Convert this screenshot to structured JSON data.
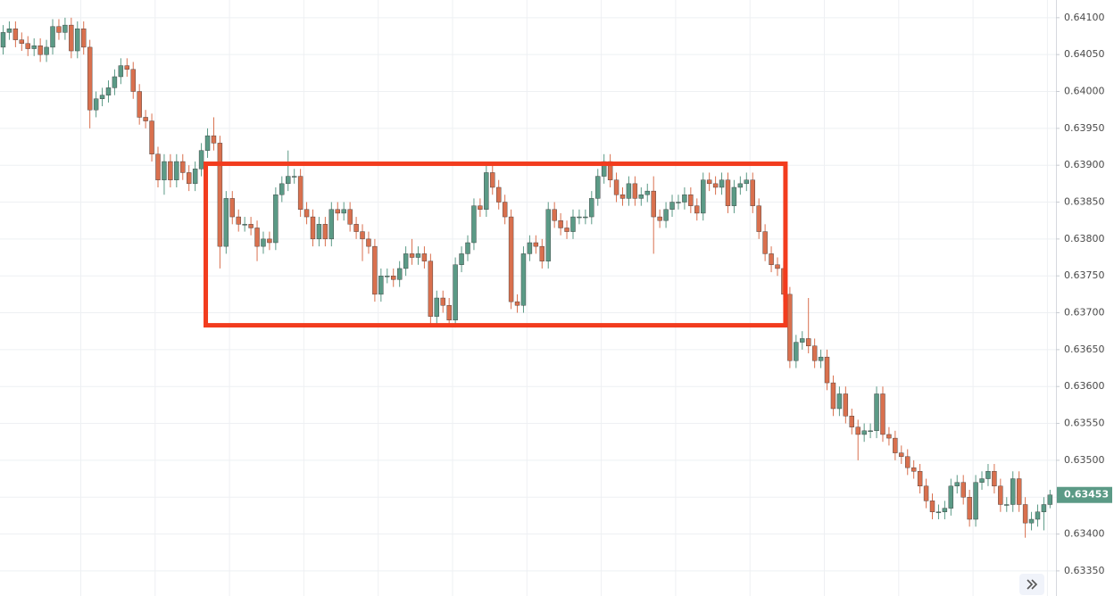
{
  "chart_data": {
    "type": "candlestick",
    "up_color": "#5b9a86",
    "down_color": "#d9704e",
    "ylim": [
      0.63316,
      0.64124
    ],
    "yticks": [
      {
        "value": 0.6335,
        "label": "0.63350"
      },
      {
        "value": 0.634,
        "label": "0.63400"
      },
      {
        "value": 0.6345,
        "label": "0.63450"
      },
      {
        "value": 0.635,
        "label": "0.63500"
      },
      {
        "value": 0.6355,
        "label": "0.63550"
      },
      {
        "value": 0.636,
        "label": "0.63600"
      },
      {
        "value": 0.6365,
        "label": "0.63650"
      },
      {
        "value": 0.637,
        "label": "0.63700"
      },
      {
        "value": 0.6375,
        "label": "0.63750"
      },
      {
        "value": 0.638,
        "label": "0.63800"
      },
      {
        "value": 0.6385,
        "label": "0.63850"
      },
      {
        "value": 0.639,
        "label": "0.63900"
      },
      {
        "value": 0.6395,
        "label": "0.63950"
      },
      {
        "value": 0.64,
        "label": "0.64000"
      },
      {
        "value": 0.6405,
        "label": "0.64050"
      },
      {
        "value": 0.641,
        "label": "0.64100"
      }
    ],
    "grid": true,
    "last_price": 0.63453,
    "last_price_color": "#5b9a86",
    "range_box": {
      "top": 0.63902,
      "bottom": 0.63683,
      "start": 33,
      "end": 126,
      "color": "#f23c1e"
    },
    "open": [
      0.6406,
      0.6408,
      0.64085,
      0.6407,
      0.64065,
      0.64058,
      0.64062,
      0.6405,
      0.6406,
      0.64088,
      0.6408,
      0.6409,
      0.64055,
      0.64085,
      0.6406,
      0.63975,
      0.6399,
      0.63995,
      0.64005,
      0.6402,
      0.64035,
      0.6403,
      0.64,
      0.63965,
      0.6396,
      0.63915,
      0.6388,
      0.63905,
      0.6388,
      0.63905,
      0.6389,
      0.63875,
      0.63895,
      0.6392,
      0.6394,
      0.6393,
      0.6379,
      0.63855,
      0.6383,
      0.6382,
      0.6382,
      0.63815,
      0.6379,
      0.638,
      0.63795,
      0.6386,
      0.63875,
      0.63885,
      0.63885,
      0.6384,
      0.6383,
      0.638,
      0.6382,
      0.638,
      0.6384,
      0.63835,
      0.6384,
      0.6382,
      0.6381,
      0.638,
      0.6379,
      0.63725,
      0.6375,
      0.6375,
      0.63745,
      0.6376,
      0.6378,
      0.63775,
      0.6378,
      0.6377,
      0.63695,
      0.6372,
      0.6371,
      0.6369,
      0.63765,
      0.6378,
      0.63795,
      0.63845,
      0.6384,
      0.6389,
      0.6387,
      0.6385,
      0.6383,
      0.63715,
      0.6371,
      0.6378,
      0.63795,
      0.6379,
      0.6377,
      0.6384,
      0.63825,
      0.63815,
      0.6381,
      0.6383,
      0.6383,
      0.6383,
      0.63855,
      0.63885,
      0.63905,
      0.6388,
      0.6386,
      0.63855,
      0.63875,
      0.63855,
      0.6386,
      0.63865,
      0.6383,
      0.63825,
      0.6384,
      0.6385,
      0.6385,
      0.6386,
      0.63845,
      0.63835,
      0.6388,
      0.63875,
      0.6387,
      0.6388,
      0.63845,
      0.6387,
      0.63875,
      0.6388,
      0.63845,
      0.6381,
      0.6378,
      0.63765,
      0.6376,
      0.63725,
      0.63635,
      0.6366,
      0.63665,
      0.63655,
      0.63635,
      0.6364,
      0.63605,
      0.6357,
      0.6359,
      0.6356,
      0.63545,
      0.63535,
      0.6354,
      0.6354,
      0.6359,
      0.63535,
      0.6353,
      0.6351,
      0.63505,
      0.6349,
      0.63485,
      0.63465,
      0.63445,
      0.6343,
      0.6343,
      0.63435,
      0.63465,
      0.6347,
      0.6345,
      0.6342,
      0.6347,
      0.63475,
      0.63485,
      0.63465,
      0.6344,
      0.6344,
      0.63475,
      0.6344,
      0.63415,
      0.6342,
      0.6343,
      0.6344
    ],
    "high": [
      0.6409,
      0.64095,
      0.64095,
      0.6408,
      0.64075,
      0.64072,
      0.64072,
      0.6407,
      0.64098,
      0.64098,
      0.641,
      0.641,
      0.64095,
      0.64095,
      0.6407,
      0.64,
      0.64005,
      0.64015,
      0.6403,
      0.64045,
      0.64045,
      0.6404,
      0.6401,
      0.63975,
      0.6397,
      0.63925,
      0.63915,
      0.63915,
      0.63915,
      0.63915,
      0.639,
      0.63905,
      0.6393,
      0.6395,
      0.63965,
      0.6394,
      0.63865,
      0.63865,
      0.6384,
      0.6383,
      0.6383,
      0.63825,
      0.6381,
      0.6381,
      0.6387,
      0.63885,
      0.6392,
      0.63895,
      0.63895,
      0.6385,
      0.6384,
      0.6383,
      0.6383,
      0.6385,
      0.6385,
      0.6385,
      0.6385,
      0.6383,
      0.6382,
      0.6381,
      0.638,
      0.6376,
      0.6376,
      0.6376,
      0.6377,
      0.6379,
      0.638,
      0.6379,
      0.6379,
      0.6378,
      0.6373,
      0.6373,
      0.6372,
      0.63775,
      0.6379,
      0.63805,
      0.63855,
      0.63855,
      0.639,
      0.639,
      0.6388,
      0.6386,
      0.6384,
      0.63725,
      0.6379,
      0.63805,
      0.63805,
      0.638,
      0.6385,
      0.6385,
      0.63835,
      0.63825,
      0.6384,
      0.6384,
      0.6384,
      0.63865,
      0.63895,
      0.63915,
      0.63915,
      0.6389,
      0.6387,
      0.63885,
      0.63885,
      0.6387,
      0.63875,
      0.63885,
      0.6384,
      0.6385,
      0.6386,
      0.6386,
      0.6387,
      0.6387,
      0.63855,
      0.6389,
      0.6389,
      0.63885,
      0.6389,
      0.6389,
      0.6388,
      0.63885,
      0.6389,
      0.6389,
      0.63855,
      0.6382,
      0.6379,
      0.63775,
      0.6377,
      0.63735,
      0.6367,
      0.63675,
      0.6372,
      0.63665,
      0.6365,
      0.6365,
      0.63615,
      0.636,
      0.636,
      0.6357,
      0.63555,
      0.6355,
      0.6355,
      0.636,
      0.636,
      0.63545,
      0.6354,
      0.6352,
      0.63515,
      0.635,
      0.63495,
      0.63475,
      0.63455,
      0.6344,
      0.63445,
      0.63475,
      0.6348,
      0.6348,
      0.6346,
      0.6348,
      0.63485,
      0.63495,
      0.63495,
      0.63475,
      0.6345,
      0.63485,
      0.63485,
      0.6345,
      0.6343,
      0.6344,
      0.6345,
      0.6346
    ],
    "low": [
      0.6405,
      0.6407,
      0.6406,
      0.64055,
      0.64048,
      0.64048,
      0.6404,
      0.6404,
      0.6405,
      0.6407,
      0.6407,
      0.64045,
      0.64045,
      0.6405,
      0.6395,
      0.63965,
      0.6398,
      0.63985,
      0.63995,
      0.6401,
      0.6402,
      0.6399,
      0.63955,
      0.6395,
      0.63905,
      0.6387,
      0.6386,
      0.6387,
      0.6387,
      0.6388,
      0.63865,
      0.63865,
      0.63885,
      0.6391,
      0.6392,
      0.6376,
      0.6378,
      0.6382,
      0.6381,
      0.6381,
      0.63805,
      0.6377,
      0.6378,
      0.63785,
      0.63785,
      0.6385,
      0.63865,
      0.63875,
      0.6383,
      0.6382,
      0.6379,
      0.6379,
      0.6379,
      0.6379,
      0.63825,
      0.63825,
      0.6381,
      0.638,
      0.6377,
      0.6378,
      0.63715,
      0.63715,
      0.6374,
      0.63735,
      0.63735,
      0.6375,
      0.63765,
      0.63765,
      0.6376,
      0.63685,
      0.63685,
      0.637,
      0.63685,
      0.6368,
      0.63755,
      0.6377,
      0.63785,
      0.6383,
      0.6383,
      0.6386,
      0.6384,
      0.6382,
      0.63705,
      0.637,
      0.637,
      0.6377,
      0.6378,
      0.6376,
      0.6376,
      0.63815,
      0.63805,
      0.638,
      0.638,
      0.6382,
      0.6382,
      0.6382,
      0.63845,
      0.63875,
      0.6387,
      0.6385,
      0.63845,
      0.63845,
      0.63845,
      0.63845,
      0.6385,
      0.6378,
      0.63815,
      0.63815,
      0.6383,
      0.6384,
      0.6384,
      0.63835,
      0.63825,
      0.63825,
      0.63865,
      0.6386,
      0.6386,
      0.63835,
      0.63835,
      0.6386,
      0.63865,
      0.63835,
      0.638,
      0.6377,
      0.63755,
      0.6375,
      0.63715,
      0.63625,
      0.63625,
      0.6365,
      0.63645,
      0.63625,
      0.63625,
      0.63595,
      0.6356,
      0.6356,
      0.6355,
      0.63535,
      0.635,
      0.63525,
      0.6353,
      0.6353,
      0.63525,
      0.6352,
      0.635,
      0.63495,
      0.6348,
      0.63475,
      0.63455,
      0.63435,
      0.6342,
      0.6342,
      0.6342,
      0.63425,
      0.63455,
      0.6344,
      0.6341,
      0.6341,
      0.6346,
      0.63465,
      0.63455,
      0.6343,
      0.6343,
      0.6343,
      0.6343,
      0.63395,
      0.63405,
      0.6341,
      0.63405,
      0.63435
    ],
    "close": [
      0.6408,
      0.64085,
      0.6407,
      0.64065,
      0.64058,
      0.64062,
      0.6405,
      0.6406,
      0.64088,
      0.6408,
      0.6409,
      0.64055,
      0.64085,
      0.6406,
      0.63975,
      0.6399,
      0.63995,
      0.64005,
      0.6402,
      0.64035,
      0.6403,
      0.64,
      0.63965,
      0.6396,
      0.63915,
      0.6388,
      0.63905,
      0.6388,
      0.63905,
      0.6389,
      0.63875,
      0.63895,
      0.6392,
      0.6394,
      0.6393,
      0.6379,
      0.63855,
      0.6383,
      0.6382,
      0.6382,
      0.63815,
      0.6379,
      0.638,
      0.63795,
      0.6386,
      0.63875,
      0.63885,
      0.63885,
      0.6384,
      0.6383,
      0.638,
      0.6382,
      0.638,
      0.6384,
      0.63835,
      0.6384,
      0.6382,
      0.6381,
      0.638,
      0.6379,
      0.63725,
      0.6375,
      0.6375,
      0.63745,
      0.6376,
      0.6378,
      0.63775,
      0.6378,
      0.6377,
      0.63695,
      0.6372,
      0.6371,
      0.6369,
      0.63765,
      0.6378,
      0.63795,
      0.63845,
      0.6384,
      0.6389,
      0.6387,
      0.6385,
      0.6383,
      0.63715,
      0.6371,
      0.6378,
      0.63795,
      0.6379,
      0.6377,
      0.6384,
      0.63825,
      0.63815,
      0.6381,
      0.6383,
      0.6383,
      0.6383,
      0.63855,
      0.63885,
      0.63905,
      0.6388,
      0.6386,
      0.63855,
      0.63875,
      0.63855,
      0.6386,
      0.63865,
      0.6383,
      0.63825,
      0.6384,
      0.6385,
      0.6385,
      0.6386,
      0.63845,
      0.63835,
      0.6388,
      0.63875,
      0.6387,
      0.6388,
      0.63845,
      0.6387,
      0.63875,
      0.6388,
      0.63845,
      0.6381,
      0.6378,
      0.63765,
      0.6376,
      0.63725,
      0.63635,
      0.6366,
      0.63665,
      0.63655,
      0.63635,
      0.6364,
      0.63605,
      0.6357,
      0.6359,
      0.6356,
      0.63545,
      0.63535,
      0.6354,
      0.6354,
      0.6359,
      0.63535,
      0.6353,
      0.6351,
      0.63505,
      0.6349,
      0.63485,
      0.63465,
      0.63445,
      0.6343,
      0.6343,
      0.63435,
      0.63465,
      0.6347,
      0.6345,
      0.6342,
      0.6347,
      0.63475,
      0.63485,
      0.63465,
      0.6344,
      0.6344,
      0.63475,
      0.6344,
      0.63415,
      0.6342,
      0.6343,
      0.6344,
      0.63453
    ]
  }
}
